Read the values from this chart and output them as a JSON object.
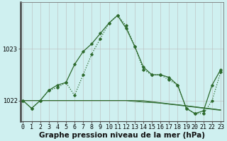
{
  "xlabel": "Graphe pression niveau de la mer (hPa)",
  "x": [
    0,
    1,
    2,
    3,
    4,
    5,
    6,
    7,
    8,
    9,
    10,
    11,
    12,
    13,
    14,
    15,
    16,
    17,
    18,
    19,
    20,
    21,
    22,
    23
  ],
  "line_jagged": [
    1022.0,
    1021.85,
    1022.0,
    1022.2,
    1022.25,
    1022.35,
    1022.1,
    1022.5,
    1022.9,
    1023.2,
    1023.5,
    1023.65,
    1023.45,
    1023.05,
    1022.6,
    1022.5,
    1022.5,
    1022.4,
    1022.3,
    1021.85,
    1021.75,
    1021.75,
    1022.0,
    1022.55
  ],
  "line_smooth": [
    1022.0,
    1021.85,
    1022.0,
    1022.2,
    1022.3,
    1022.35,
    1022.7,
    1022.95,
    1023.1,
    1023.3,
    1023.5,
    1023.65,
    1023.4,
    1023.05,
    1022.65,
    1022.5,
    1022.5,
    1022.45,
    1022.3,
    1021.85,
    1021.75,
    1021.8,
    1022.3,
    1022.6
  ],
  "flat1": [
    1022.0,
    1022.0,
    1022.0,
    1022.0,
    1022.0,
    1022.0,
    1022.0,
    1022.0,
    1022.0,
    1022.0,
    1022.0,
    1022.0,
    1022.0,
    1021.98,
    1021.97,
    1021.96,
    1021.95,
    1021.93,
    1021.92,
    1021.9,
    1021.88,
    1021.86,
    1021.84,
    1021.82
  ],
  "flat2": [
    1022.0,
    1022.0,
    1022.0,
    1022.0,
    1022.0,
    1022.0,
    1022.0,
    1022.0,
    1022.0,
    1022.0,
    1022.0,
    1022.0,
    1022.0,
    1022.0,
    1021.98,
    1021.97,
    1021.95,
    1021.93,
    1021.91,
    1021.89,
    1021.87,
    1021.85,
    1021.83,
    1021.81
  ],
  "flat3": [
    1022.0,
    1022.0,
    1022.0,
    1022.0,
    1022.0,
    1022.0,
    1022.0,
    1022.0,
    1022.0,
    1022.0,
    1022.0,
    1022.0,
    1022.0,
    1022.0,
    1022.0,
    1021.98,
    1021.96,
    1021.94,
    1021.92,
    1021.9,
    1021.88,
    1021.86,
    1021.84,
    1021.82
  ],
  "bg_color": "#cff0f0",
  "line_color": "#2d6a2d",
  "grid_color": "#bbbbbb",
  "ylim": [
    1021.6,
    1023.9
  ],
  "ytick_vals": [
    1022,
    1023
  ],
  "xticks": [
    0,
    1,
    2,
    3,
    4,
    5,
    6,
    7,
    8,
    9,
    10,
    11,
    12,
    13,
    14,
    15,
    16,
    17,
    18,
    19,
    20,
    21,
    22,
    23
  ],
  "tick_fontsize": 6.0,
  "xlabel_fontsize": 7.5
}
